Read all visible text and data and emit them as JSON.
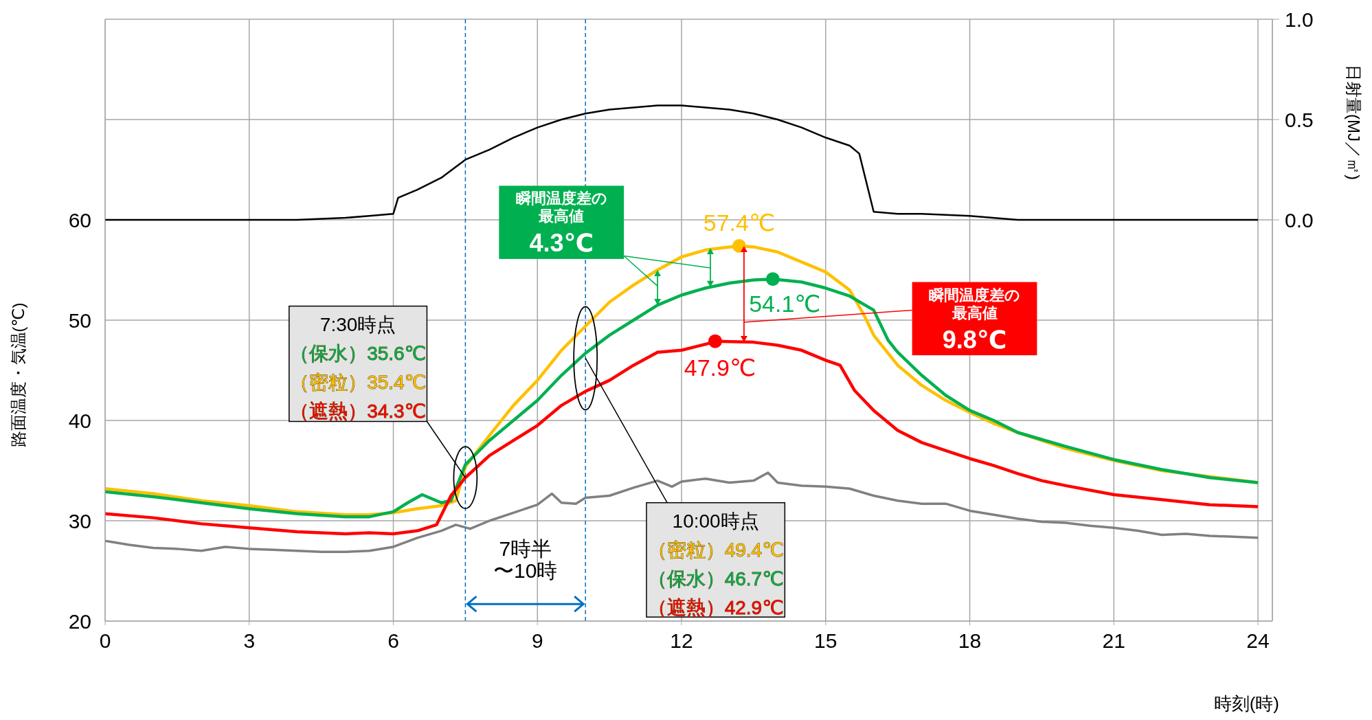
{
  "chart_data": {
    "type": "line",
    "xlabel": "時刻(時)",
    "ylabel": "路面温度・気温(℃)",
    "y2label": "日射量(MJ／㎡)",
    "xlim": [
      0,
      24.3
    ],
    "xticks": [
      0,
      3,
      6,
      9,
      12,
      15,
      18,
      21,
      24
    ],
    "ylim": [
      20,
      80
    ],
    "yticks": [
      20,
      30,
      40,
      50,
      60,
      {
        "value": 70,
        "label": null
      },
      {
        "value": 80,
        "label": null
      }
    ],
    "y2lim": [
      -2,
      1
    ],
    "y2ticks": [
      {
        "value": 0,
        "label": "0.0"
      },
      {
        "value": 0.5,
        "label": "0.5"
      },
      {
        "value": 1,
        "label": "1.0"
      }
    ],
    "grid": true,
    "series": [
      {
        "color": "#000000",
        "axis": "y2",
        "x": [
          0,
          1,
          2,
          3,
          4,
          5,
          5.5,
          6,
          6.1,
          6.5,
          7,
          7.5,
          8,
          8.5,
          9,
          9.5,
          10,
          10.5,
          11,
          11.5,
          12,
          12.5,
          13,
          13.5,
          14,
          14.5,
          15,
          15.5,
          15.7,
          16,
          16.5,
          17,
          18,
          19,
          20,
          21,
          22,
          23,
          24
        ],
        "values": [
          0,
          0,
          0,
          0,
          0,
          0.01,
          0.02,
          0.03,
          0.11,
          0.15,
          0.21,
          0.3,
          0.35,
          0.41,
          0.46,
          0.5,
          0.53,
          0.55,
          0.56,
          0.57,
          0.57,
          0.56,
          0.55,
          0.53,
          0.5,
          0.46,
          0.41,
          0.37,
          0.33,
          0.04,
          0.03,
          0.03,
          0.02,
          0,
          0,
          0,
          0,
          0,
          0
        ]
      },
      {
        "color": "#808080",
        "x": [
          0,
          0.5,
          1,
          1.5,
          2,
          2.5,
          3,
          3.5,
          4,
          4.5,
          5,
          5.5,
          6,
          6.5,
          7,
          7.3,
          7.6,
          8,
          8.5,
          9,
          9.3,
          9.5,
          9.8,
          10,
          10.5,
          11,
          11.5,
          11.8,
          12,
          12.5,
          13,
          13.5,
          13.8,
          14,
          14.5,
          15,
          15.5,
          16,
          16.5,
          17,
          17.5,
          18,
          18.5,
          19,
          19.5,
          20,
          20.5,
          21,
          21.5,
          22,
          22.5,
          23,
          23.5,
          24
        ],
        "values": [
          28.0,
          27.6,
          27.3,
          27.2,
          27.0,
          27.4,
          27.2,
          27.1,
          27.0,
          26.9,
          26.9,
          27.0,
          27.4,
          28.3,
          29.0,
          29.6,
          29.2,
          30.0,
          30.8,
          31.6,
          32.7,
          31.8,
          31.7,
          32.3,
          32.5,
          33.3,
          34.0,
          33.4,
          33.9,
          34.2,
          33.8,
          34.0,
          34.8,
          33.8,
          33.5,
          33.4,
          33.2,
          32.5,
          32.0,
          31.7,
          31.7,
          31.0,
          30.6,
          30.2,
          29.9,
          29.8,
          29.5,
          29.3,
          29.0,
          28.6,
          28.7,
          28.5,
          28.4,
          28.3
        ]
      },
      {
        "color": "#ffc000",
        "x": [
          0,
          1,
          2,
          3,
          4,
          5,
          5.5,
          6,
          6.5,
          7,
          7.3,
          7.5,
          8,
          8.5,
          9,
          9.5,
          10,
          10.5,
          11,
          11.5,
          12,
          12.5,
          13,
          13.2,
          13.5,
          14,
          14.5,
          15,
          15.5,
          15.8,
          16,
          16.5,
          17,
          17.5,
          18,
          18.5,
          19,
          19.5,
          20,
          21,
          22,
          23,
          24
        ],
        "values": [
          33.2,
          32.7,
          32.0,
          31.5,
          30.9,
          30.6,
          30.6,
          30.8,
          31.2,
          31.5,
          32.0,
          35.4,
          38.5,
          41.5,
          44.0,
          47.0,
          49.4,
          51.8,
          53.5,
          55.0,
          56.3,
          57.0,
          57.3,
          57.4,
          57.3,
          56.8,
          55.8,
          54.8,
          53.0,
          50.5,
          48.5,
          45.5,
          43.5,
          42.0,
          40.8,
          39.7,
          38.8,
          38.0,
          37.2,
          36.0,
          35.0,
          34.4,
          33.8
        ]
      },
      {
        "color": "#00b050",
        "x": [
          0,
          1,
          2,
          3,
          4,
          5,
          5.5,
          6,
          6.3,
          6.6,
          7,
          7.2,
          7.5,
          8,
          8.5,
          9,
          9.5,
          10,
          10.5,
          11,
          11.5,
          12,
          12.5,
          13,
          13.5,
          13.9,
          14.5,
          15,
          15.5,
          16,
          16.3,
          16.5,
          17,
          17.5,
          18,
          18.5,
          19,
          19.5,
          20,
          21,
          22,
          23,
          24
        ],
        "values": [
          32.9,
          32.4,
          31.8,
          31.2,
          30.7,
          30.4,
          30.4,
          30.9,
          31.8,
          32.6,
          31.8,
          32.0,
          35.6,
          38.0,
          40.0,
          42.0,
          44.5,
          46.7,
          48.5,
          50.0,
          51.5,
          52.5,
          53.2,
          53.7,
          54.0,
          54.1,
          53.8,
          53.2,
          52.4,
          51.0,
          48.0,
          46.8,
          44.5,
          42.5,
          41.0,
          40.0,
          38.8,
          38.1,
          37.4,
          36.1,
          35.1,
          34.3,
          33.8
        ]
      },
      {
        "color": "#ff0000",
        "x": [
          0,
          1,
          2,
          3,
          4,
          5,
          5.5,
          6,
          6.5,
          6.9,
          7.2,
          7.5,
          8,
          8.5,
          9,
          9.5,
          10,
          10.5,
          11,
          11.5,
          12,
          12.5,
          12.7,
          13.5,
          14,
          14.5,
          15,
          15.3,
          15.6,
          16,
          16.5,
          17,
          17.5,
          18,
          18.5,
          19,
          19.5,
          20,
          21,
          22,
          23,
          24
        ],
        "values": [
          30.7,
          30.3,
          29.7,
          29.3,
          28.9,
          28.7,
          28.8,
          28.7,
          29.0,
          29.6,
          32.5,
          34.3,
          36.5,
          38.0,
          39.5,
          41.5,
          42.9,
          44.0,
          45.5,
          46.8,
          47.0,
          47.6,
          47.9,
          47.8,
          47.5,
          47.0,
          46.0,
          45.5,
          43.0,
          41.0,
          39.0,
          37.8,
          37.0,
          36.2,
          35.5,
          34.7,
          34.0,
          33.5,
          32.6,
          32.1,
          31.6,
          31.4
        ]
      },
      {
        "type": "scatter",
        "color": "#ffc000",
        "x": [
          13.2
        ],
        "values": [
          57.4
        ]
      },
      {
        "type": "scatter",
        "color": "#00b050",
        "x": [
          13.9
        ],
        "values": [
          54.1
        ]
      },
      {
        "type": "scatter",
        "color": "#ff0000",
        "x": [
          12.7
        ],
        "values": [
          47.9
        ]
      }
    ],
    "ref_lines": [
      {
        "axis": "x",
        "value": 7.5,
        "color": "#0070c0",
        "line_style": "dashed"
      },
      {
        "axis": "x",
        "value": 10,
        "color": "#0070c0",
        "line_style": "dashed"
      }
    ],
    "annotations": [
      {
        "text": "57.4℃",
        "x": 13.2,
        "y": 57.4
      },
      {
        "text": "54.1℃",
        "x": 13.9,
        "y": 54.1
      },
      {
        "text": "47.9℃",
        "x": 12.7,
        "y": 47.9
      },
      "7:30時点",
      "（保水）35.6℃",
      "（密粒）35.4℃",
      {
        "text": "（遮熱）34.3℃",
        "x": 7.5,
        "y": 34.3
      },
      {
        "text": "10:00時点",
        "x": 10,
        "y": 46.2
      },
      "（密粒）49.4℃",
      "（保水）46.7℃",
      "（遮熱）42.9℃",
      "瞬間温度差の最高値",
      "4.3℃",
      "瞬間温度差の最高値",
      "9.8℃",
      "7時半〜10時"
    ]
  }
}
